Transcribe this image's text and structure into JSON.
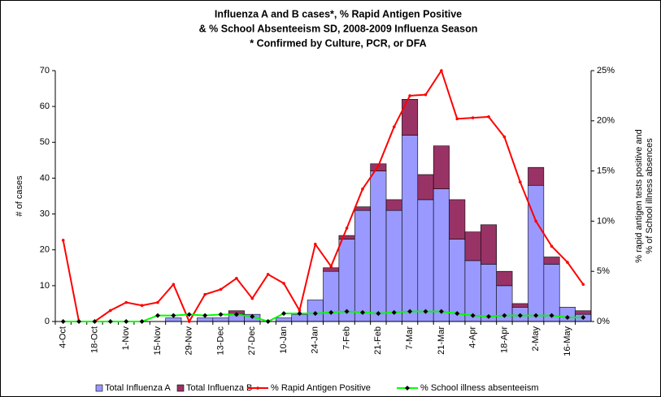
{
  "chart_data": {
    "type": "combo",
    "title": [
      "Influenza A and B cases*, % Rapid Antigen Positive",
      "& % School Absenteeism SD, 2008-2009 Influenza Season",
      "* Confirmed by Culture, PCR, or DFA"
    ],
    "ylabel": "# of cases",
    "y2label": [
      "% rapid antigen tests positive and",
      "% of School illness absences"
    ],
    "categories": [
      "4-Oct",
      null,
      "18-Oct",
      null,
      "1-Nov",
      null,
      "15-Nov",
      null,
      "29-Nov",
      null,
      "13-Dec",
      null,
      "27-Dec",
      null,
      "10-Jan",
      null,
      "24-Jan",
      null,
      "7-Feb",
      null,
      "21-Feb",
      null,
      "7-Mar",
      null,
      "21-Mar",
      null,
      "4-Apr",
      null,
      "18-Apr",
      null,
      "2-May",
      null,
      "16-May",
      null
    ],
    "series": [
      {
        "name": "Total Influenza A",
        "kind": "bar",
        "color": "#9999ff",
        "values": [
          0,
          0,
          0,
          0,
          0,
          0,
          0,
          1,
          0,
          1,
          1,
          2,
          2,
          0,
          1,
          2,
          6,
          14,
          23,
          31,
          42,
          31,
          52,
          34,
          37,
          23,
          17,
          16,
          10,
          4,
          38,
          16,
          4,
          2
        ]
      },
      {
        "name": "Total Influenza B",
        "kind": "bar",
        "color": "#993366",
        "values": [
          0,
          0,
          0,
          0,
          0,
          0,
          0,
          0,
          0,
          0,
          0,
          1,
          0,
          0,
          0,
          0,
          0,
          1,
          1,
          1,
          2,
          3,
          10,
          7,
          12,
          11,
          8,
          11,
          4,
          1,
          5,
          2,
          0,
          1
        ]
      },
      {
        "name": "% Rapid Antigen Positive",
        "kind": "line",
        "axis": "y2",
        "color": "#ff0000",
        "values": [
          8.1,
          0,
          0,
          1.1,
          1.9,
          1.6,
          1.9,
          3.7,
          0,
          2.7,
          3.2,
          4.3,
          2.3,
          4.7,
          3.8,
          1.1,
          7.7,
          5.5,
          9.3,
          13.2,
          15.5,
          19.4,
          22.5,
          22.6,
          25,
          20.2,
          20.3,
          20.4,
          18.4,
          13.9,
          10,
          7.5,
          5.9,
          3.7
        ]
      },
      {
        "name": "% School illness absenteeism",
        "kind": "line",
        "axis": "y2",
        "color": "#00ff00",
        "values": [
          0,
          0,
          0,
          0,
          0,
          0,
          0.6,
          0.6,
          0.7,
          0.6,
          0.7,
          0.7,
          0.5,
          0,
          0.8,
          0.8,
          0.8,
          0.9,
          1.0,
          0.9,
          0.8,
          0.9,
          1.0,
          1.0,
          1.0,
          0.8,
          0.6,
          0.5,
          0.6,
          0.6,
          0.6,
          0.6,
          0.4,
          0.4
        ]
      }
    ],
    "ylim": [
      0,
      70
    ],
    "yticks": [
      0,
      10,
      20,
      30,
      40,
      50,
      60,
      70
    ],
    "y2lim": [
      0,
      25
    ],
    "y2ticks": [
      {
        "value": 0,
        "label": "0%"
      },
      {
        "value": 5,
        "label": "5%"
      },
      {
        "value": 10,
        "label": "10%"
      },
      {
        "value": 15,
        "label": "15%"
      },
      {
        "value": 20,
        "label": "20%"
      },
      {
        "value": 25,
        "label": "25%"
      }
    ],
    "legend": "bottom"
  }
}
